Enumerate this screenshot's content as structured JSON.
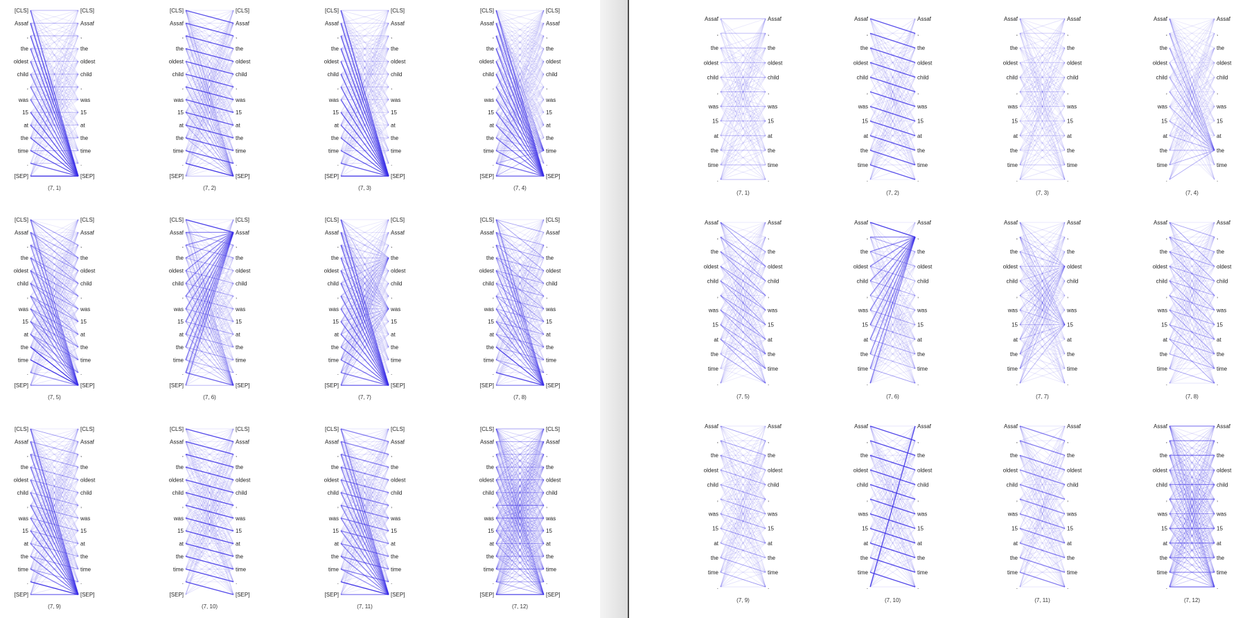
{
  "accent_color": "#3b2fe6",
  "left_figure": {
    "tokens": [
      "[CLS]",
      "Assaf",
      ",",
      "the",
      "oldest",
      "child",
      ",",
      "was",
      "15",
      "at",
      "the",
      "time",
      ".",
      "[SEP]"
    ],
    "captions": [
      "(7, 1)",
      "(7, 2)",
      "(7, 3)",
      "(7, 4)",
      "(7, 5)",
      "(7, 6)",
      "(7, 7)",
      "(7, 8)",
      "(7, 9)",
      "(7, 10)",
      "(7, 11)",
      "(7, 12)"
    ]
  },
  "right_figure": {
    "tokens": [
      "Assaf",
      ",",
      "the",
      "oldest",
      "child",
      ",",
      "was",
      "15",
      "at",
      "the",
      "time",
      "."
    ],
    "captions": [
      "(7, 1)",
      "(7, 2)",
      "(7, 3)",
      "(7, 4)",
      "(7, 5)",
      "(7, 6)",
      "(7, 7)",
      "(7, 8)",
      "(7, 9)",
      "(7, 10)",
      "(7, 11)",
      "(7, 12)"
    ]
  }
}
